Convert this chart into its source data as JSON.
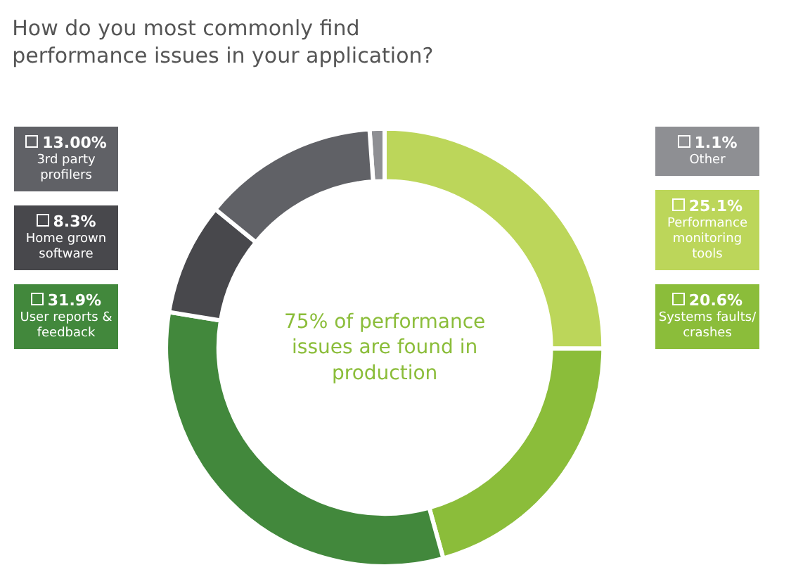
{
  "chart_data": {
    "type": "donut",
    "title": "How do you most commonly find\nperformance issues in your application?",
    "categories": [
      "Other",
      "Performance monitoring tools",
      "Systems faults/ crashes",
      "User reports & feedback",
      "Home grown software",
      "3rd party profilers"
    ],
    "values": [
      1.1,
      25.1,
      20.6,
      31.9,
      8.3,
      13.0
    ],
    "value_labels": [
      "1.1%",
      "25.1%",
      "20.6%",
      "31.9%",
      "8.3%",
      "13.00%"
    ],
    "colors": [
      "#8e8f93",
      "#bcd65a",
      "#8bbd3a",
      "#42883c",
      "#48484c",
      "#606166"
    ],
    "legend": "right",
    "annotations": [
      "75% of performance issues are found in production"
    ]
  }
}
